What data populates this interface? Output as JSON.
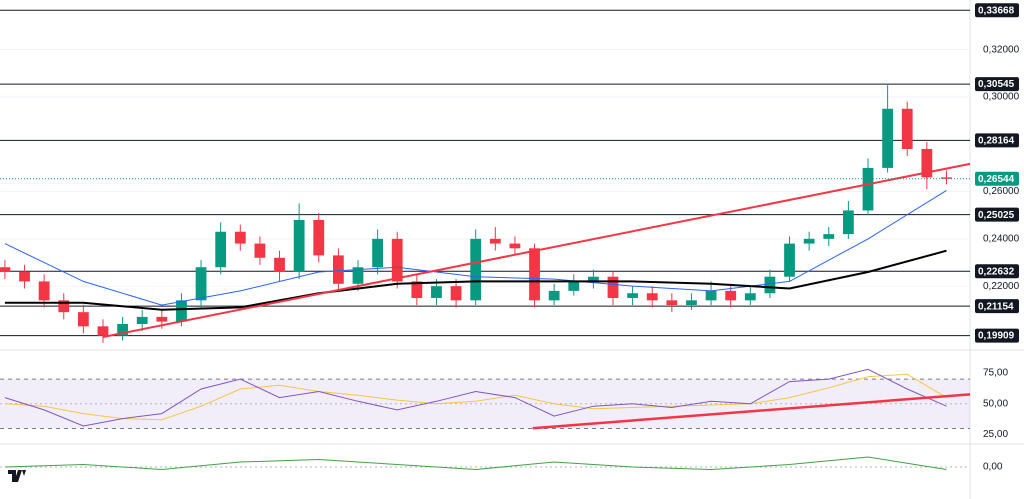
{
  "chart_data": {
    "type": "candlestick",
    "ylim": [
      0.193,
      0.341
    ],
    "xlim": [
      -0.25,
      49.2
    ],
    "yticks": [
      {
        "value": 0.32,
        "label": "0,32000"
      },
      {
        "value": 0.3,
        "label": "0,30000"
      },
      {
        "value": 0.26,
        "label": "0,26000"
      },
      {
        "value": 0.24,
        "label": "0,24000"
      },
      {
        "value": 0.22,
        "label": "0,22000"
      }
    ],
    "levels": [
      {
        "value": 0.33668,
        "label": "0,33668"
      },
      {
        "value": 0.30545,
        "label": "0,30545"
      },
      {
        "value": 0.28164,
        "label": "0,28164"
      },
      {
        "value": 0.25025,
        "label": "0,25025"
      },
      {
        "value": 0.22632,
        "label": "0,22632"
      },
      {
        "value": 0.21154,
        "label": "0,21154"
      },
      {
        "value": 0.19909,
        "label": "0,19909"
      }
    ],
    "last_price": {
      "value": 0.26544,
      "label": "0,26544",
      "color": "#089981"
    },
    "up_color": "#089981",
    "down_color": "#f23645",
    "open": [
      0.228,
      0.226,
      0.222,
      0.214,
      0.209,
      0.203,
      0.199,
      0.204,
      0.207,
      0.205,
      0.214,
      0.228,
      0.243,
      0.238,
      0.232,
      0.226,
      0.248,
      0.233,
      0.221,
      0.228,
      0.24,
      0.222,
      0.215,
      0.22,
      0.214,
      0.24,
      0.238,
      0.236,
      0.214,
      0.218,
      0.222,
      0.224,
      0.215,
      0.217,
      0.214,
      0.212,
      0.214,
      0.218,
      0.214,
      0.217,
      0.224,
      0.238,
      0.24,
      0.242,
      0.252,
      0.27,
      0.295,
      0.278,
      0.266
    ],
    "high": [
      0.231,
      0.229,
      0.225,
      0.217,
      0.212,
      0.206,
      0.207,
      0.21,
      0.21,
      0.217,
      0.231,
      0.247,
      0.246,
      0.241,
      0.235,
      0.255,
      0.251,
      0.236,
      0.231,
      0.244,
      0.243,
      0.225,
      0.223,
      0.223,
      0.244,
      0.245,
      0.241,
      0.238,
      0.221,
      0.225,
      0.227,
      0.226,
      0.22,
      0.22,
      0.217,
      0.217,
      0.222,
      0.221,
      0.22,
      0.227,
      0.241,
      0.243,
      0.245,
      0.256,
      0.274,
      0.305,
      0.298,
      0.281,
      0.269
    ],
    "low": [
      0.223,
      0.219,
      0.211,
      0.206,
      0.2,
      0.196,
      0.197,
      0.201,
      0.202,
      0.203,
      0.211,
      0.225,
      0.235,
      0.229,
      0.222,
      0.223,
      0.23,
      0.218,
      0.218,
      0.225,
      0.219,
      0.212,
      0.212,
      0.211,
      0.212,
      0.235,
      0.233,
      0.211,
      0.212,
      0.216,
      0.219,
      0.212,
      0.212,
      0.211,
      0.209,
      0.21,
      0.212,
      0.211,
      0.212,
      0.215,
      0.222,
      0.235,
      0.237,
      0.24,
      0.25,
      0.268,
      0.275,
      0.261,
      0.263
    ],
    "close": [
      0.226,
      0.222,
      0.214,
      0.209,
      0.203,
      0.199,
      0.204,
      0.207,
      0.205,
      0.214,
      0.228,
      0.243,
      0.238,
      0.232,
      0.226,
      0.248,
      0.233,
      0.221,
      0.228,
      0.24,
      0.222,
      0.215,
      0.22,
      0.214,
      0.24,
      0.238,
      0.236,
      0.214,
      0.218,
      0.222,
      0.224,
      0.215,
      0.217,
      0.214,
      0.212,
      0.214,
      0.218,
      0.214,
      0.217,
      0.224,
      0.238,
      0.24,
      0.242,
      0.252,
      0.27,
      0.295,
      0.278,
      0.266,
      0.2654
    ],
    "ma_x": [
      0,
      4,
      8,
      12,
      16,
      20,
      24,
      28,
      32,
      36,
      40,
      44,
      48
    ],
    "moving_averages": [
      {
        "color": "#2962ff",
        "values": [
          0.238,
          0.222,
          0.212,
          0.218,
          0.226,
          0.228,
          0.224,
          0.223,
          0.22,
          0.218,
          0.222,
          0.24,
          0.2605
        ]
      },
      {
        "color": "#000000",
        "values": [
          0.213,
          0.213,
          0.21,
          0.211,
          0.217,
          0.221,
          0.222,
          0.222,
          0.222,
          0.221,
          0.219,
          0.226,
          0.235
        ]
      }
    ],
    "trendline": {
      "color": "#f23645",
      "x": [
        5,
        49.2
      ],
      "values": [
        0.1985,
        0.2717
      ]
    },
    "rsi": {
      "ylim": [
        19,
        92
      ],
      "yticks": [
        {
          "value": 75,
          "label": "75,00"
        },
        {
          "value": 50,
          "label": "50,00"
        },
        {
          "value": 25,
          "label": "25,00"
        }
      ],
      "bands": [
        30,
        70
      ],
      "x": [
        0,
        2,
        4,
        6,
        8,
        10,
        12,
        14,
        16,
        18,
        20,
        22,
        24,
        26,
        28,
        30,
        32,
        34,
        36,
        38,
        40,
        42,
        44,
        46,
        48
      ],
      "values": [
        55,
        45,
        32,
        38,
        42,
        62,
        70,
        55,
        60,
        52,
        45,
        52,
        60,
        55,
        40,
        48,
        50,
        47,
        52,
        50,
        68,
        70,
        78,
        62,
        48
      ],
      "ma": [
        50,
        48,
        42,
        38,
        37,
        48,
        62,
        65,
        60,
        57,
        53,
        50,
        52,
        57,
        50,
        46,
        47,
        48,
        49,
        50,
        55,
        63,
        72,
        74,
        55
      ],
      "trendline": {
        "x": [
          26.9,
          49.2
        ],
        "values": [
          30.2,
          57.6
        ]
      }
    },
    "oscillator": {
      "ylim": [
        -12,
        8
      ],
      "yticks": [
        {
          "value": 0,
          "label": "0,00"
        }
      ],
      "x": [
        0,
        4,
        8,
        12,
        16,
        20,
        24,
        28,
        32,
        36,
        40,
        44,
        48
      ],
      "values": [
        0,
        1,
        -1,
        2,
        3,
        1,
        -1,
        2,
        0,
        -1,
        1,
        4,
        -1
      ]
    }
  }
}
